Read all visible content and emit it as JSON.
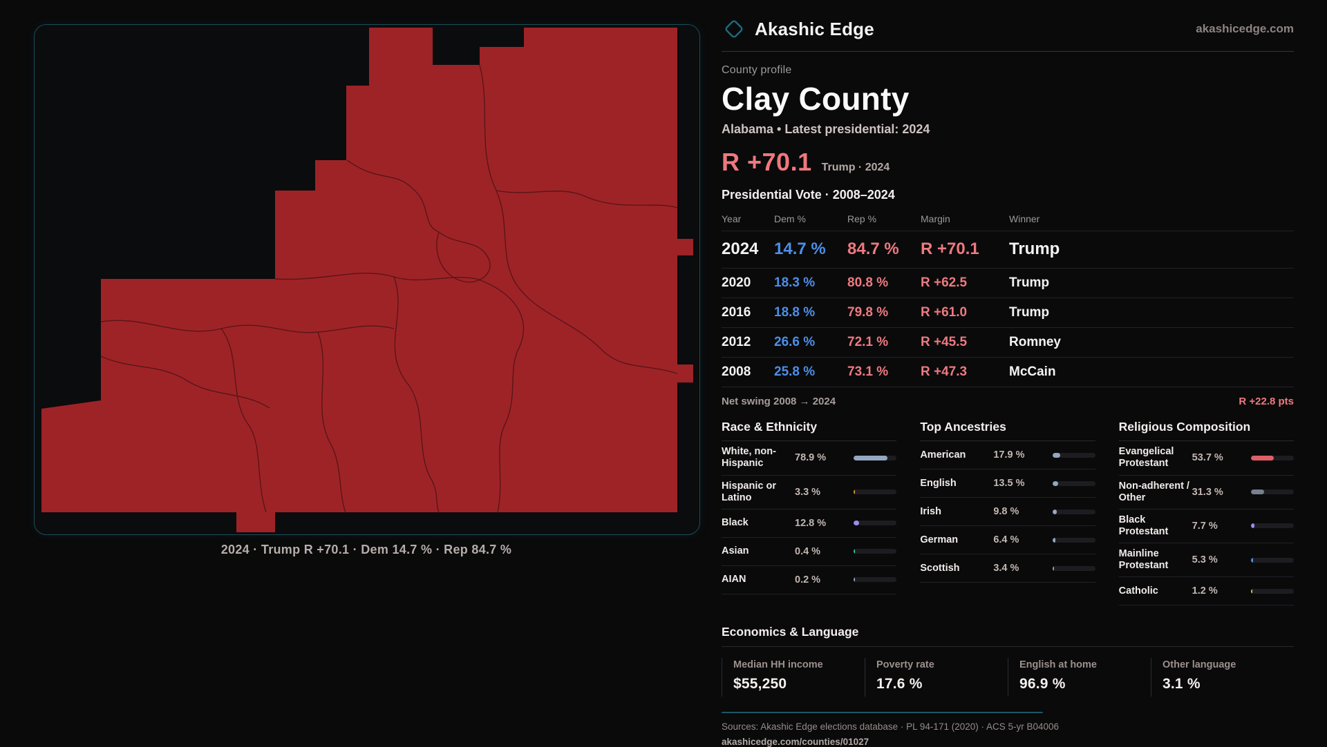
{
  "brand": {
    "name": "Akashic Edge",
    "domain": "akashicedge.com",
    "icon": "diamond-icon",
    "accent": "#1e6b7c"
  },
  "profile": {
    "kicker": "County profile",
    "county": "Clay County",
    "subtitle": "Alabama • Latest presidential: 2024",
    "headline_margin": "R +70.1",
    "headline_note": "Trump · 2024",
    "margin_color": "#f0787e"
  },
  "vote_table": {
    "title": "Presidential Vote · 2008–2024",
    "columns": [
      "Year",
      "Dem %",
      "Rep %",
      "Margin",
      "Winner"
    ],
    "rows": [
      {
        "year": "2024",
        "dem": "14.7 %",
        "rep": "84.7 %",
        "margin": "R +70.1",
        "winner": "Trump",
        "big": true
      },
      {
        "year": "2020",
        "dem": "18.3 %",
        "rep": "80.8 %",
        "margin": "R +62.5",
        "winner": "Trump",
        "big": false
      },
      {
        "year": "2016",
        "dem": "18.8 %",
        "rep": "79.8 %",
        "margin": "R +61.0",
        "winner": "Trump",
        "big": false
      },
      {
        "year": "2012",
        "dem": "26.6 %",
        "rep": "72.1 %",
        "margin": "R +45.5",
        "winner": "Romney",
        "big": false
      },
      {
        "year": "2008",
        "dem": "25.8 %",
        "rep": "73.1 %",
        "margin": "R +47.3",
        "winner": "McCain",
        "big": false
      }
    ],
    "dem_color": "#4d8fe8",
    "rep_color": "#ee7a80"
  },
  "net_swing": {
    "label": "Net swing 2008 → 2024",
    "value": "R +22.8 pts"
  },
  "sections": [
    {
      "title": "Race & Ethnicity",
      "rows": [
        {
          "label": "White, non-Hispanic",
          "value": "78.9 %",
          "pct": 78.9,
          "color": "#93a7c0"
        },
        {
          "label": "Hispanic or Latino",
          "value": "3.3 %",
          "pct": 3.3,
          "color": "#e29a35"
        },
        {
          "label": "Black",
          "value": "12.8 %",
          "pct": 12.8,
          "color": "#9b8cf0"
        },
        {
          "label": "Asian",
          "value": "0.4 %",
          "pct": 0.4,
          "color": "#35c79a"
        },
        {
          "label": "AIAN",
          "value": "0.2 %",
          "pct": 0.2,
          "color": "#93a7c0"
        }
      ]
    },
    {
      "title": "Top Ancestries",
      "rows": [
        {
          "label": "American",
          "value": "17.9 %",
          "pct": 17.9,
          "color": "#93a7c0"
        },
        {
          "label": "English",
          "value": "13.5 %",
          "pct": 13.5,
          "color": "#93a7c0"
        },
        {
          "label": "Irish",
          "value": "9.8 %",
          "pct": 9.8,
          "color": "#93a7c0"
        },
        {
          "label": "German",
          "value": "6.4 %",
          "pct": 6.4,
          "color": "#93a7c0"
        },
        {
          "label": "Scottish",
          "value": "3.4 %",
          "pct": 3.4,
          "color": "#93a7c0"
        }
      ]
    },
    {
      "title": "Religious Composition",
      "rows": [
        {
          "label": "Evangelical Protestant",
          "value": "53.7 %",
          "pct": 53.7,
          "color": "#e05f66"
        },
        {
          "label": "Non-adherent / Other",
          "value": "31.3 %",
          "pct": 31.3,
          "color": "#76808f"
        },
        {
          "label": "Black Protestant",
          "value": "7.7 %",
          "pct": 7.7,
          "color": "#9b8cf0"
        },
        {
          "label": "Mainline Protestant",
          "value": "5.3 %",
          "pct": 5.3,
          "color": "#4d8fe8"
        },
        {
          "label": "Catholic",
          "value": "1.2 %",
          "pct": 1.2,
          "color": "#e2c235"
        }
      ]
    }
  ],
  "economics": {
    "title": "Economics & Language",
    "stats": [
      {
        "label": "Median HH income",
        "value": "$55,250"
      },
      {
        "label": "Poverty rate",
        "value": "17.6 %"
      },
      {
        "label": "English at home",
        "value": "96.9 %"
      },
      {
        "label": "Other language",
        "value": "3.1 %"
      }
    ]
  },
  "footer": {
    "sources": "Sources: Akashic Edge elections database · PL 94-171 (2020) · ACS 5-yr B04006",
    "permalink": "akashicedge.com/counties/01027"
  },
  "map": {
    "caption": "2024 · Trump R +70.1 · Dem 14.7 % · Rep 84.7 %",
    "county_fill": "#9e2327",
    "boundary_stroke": "#4e1315",
    "panel_border": "#1a4e58"
  }
}
